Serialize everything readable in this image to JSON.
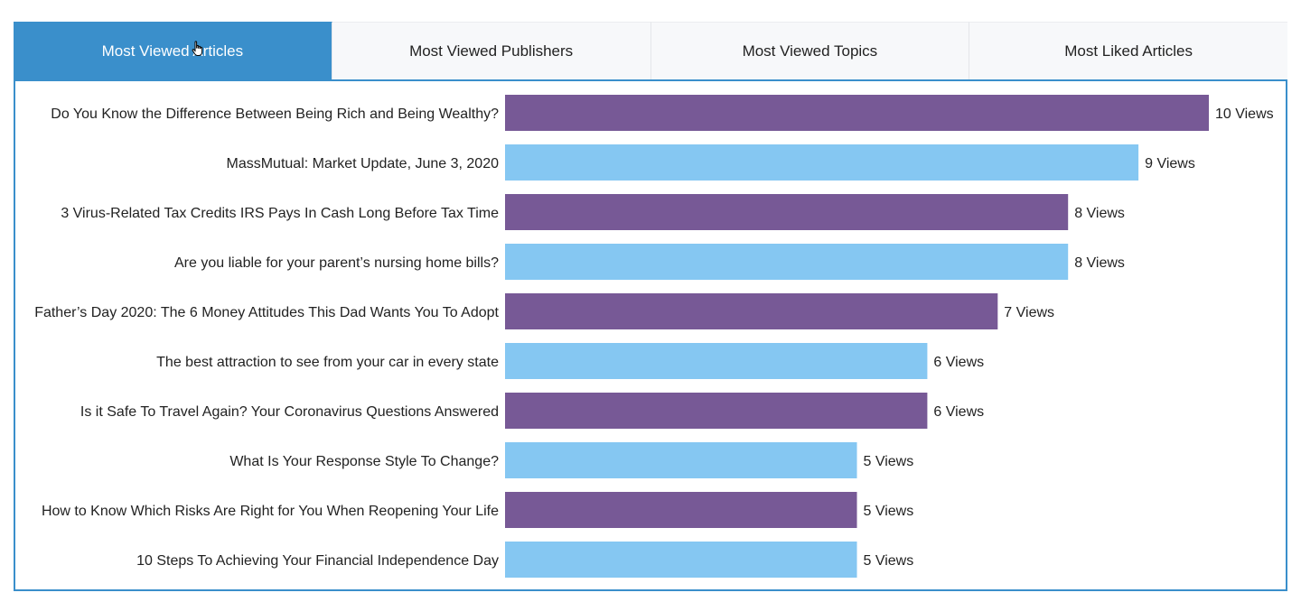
{
  "tabs": [
    {
      "label": "Most Viewed Articles",
      "active": true
    },
    {
      "label": "Most Viewed Publishers",
      "active": false
    },
    {
      "label": "Most Viewed Topics",
      "active": false
    },
    {
      "label": "Most Liked Articles",
      "active": false
    }
  ],
  "colors": {
    "accent": "#3a8fcb",
    "bar_primary": "#775996",
    "bar_secondary": "#85c7f2"
  },
  "chart_data": {
    "type": "bar",
    "orientation": "horizontal",
    "value_suffix": " Views",
    "categories": [
      "Do You Know the Difference Between Being Rich and Being Wealthy?",
      "MassMutual: Market Update, June 3, 2020",
      "3 Virus-Related Tax Credits IRS Pays In Cash Long Before Tax Time",
      "Are you liable for your parent’s nursing home bills?",
      "Father’s Day 2020: The 6 Money Attitudes This Dad Wants You To Adopt",
      "The best attraction to see from your car in every state",
      "Is it Safe To Travel Again? Your Coronavirus Questions Answered",
      "What Is Your Response Style To Change?",
      "How to Know Which Risks Are Right for You When Reopening Your Life",
      "10 Steps To Achieving Your Financial Independence Day"
    ],
    "values": [
      10,
      9,
      8,
      8,
      7,
      6,
      6,
      5,
      5,
      5
    ],
    "xlim": [
      0,
      10
    ],
    "grid": false,
    "legend": "none"
  }
}
